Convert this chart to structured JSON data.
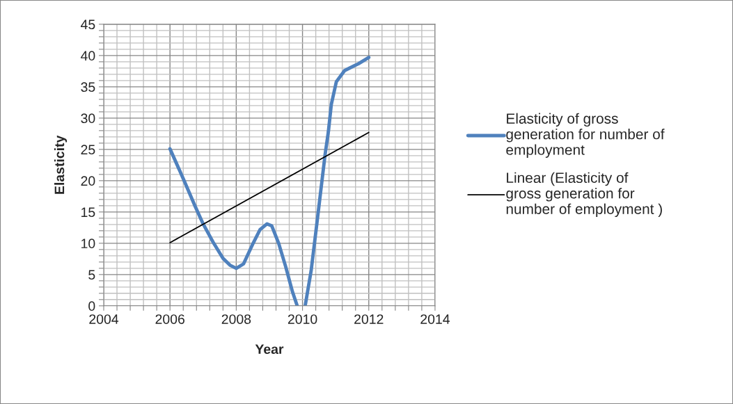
{
  "chart_data": {
    "type": "line",
    "xlabel": "Year",
    "ylabel": "Elasticity",
    "series": [
      {
        "name": "Elasticity of gross generation for number of employment",
        "color": "#4f81bd",
        "x": [
          2006,
          2006.41,
          2006.76,
          2007.0,
          2007.32,
          2007.6,
          2007.81,
          2008.0,
          2008.22,
          2008.51,
          2008.72,
          2008.93,
          2009.07,
          2009.28,
          2009.49,
          2009.7,
          2009.84,
          2009.96,
          2010.08,
          2010.26,
          2010.43,
          2010.68,
          2010.78,
          2010.87,
          2011.02,
          2011.27,
          2011.69,
          2012.0
        ],
        "values": [
          25.1,
          20.2,
          15.9,
          13.1,
          10.0,
          7.6,
          6.5,
          6.0,
          6.7,
          10.0,
          12.2,
          13.1,
          12.8,
          10.0,
          6.3,
          2.2,
          0,
          null,
          0,
          5.6,
          13.0,
          24.1,
          27.8,
          32.2,
          35.8,
          37.6,
          38.7,
          39.7
        ]
      },
      {
        "name": "Linear (Elasticity of gross generation for number of employment )",
        "color": "#000000",
        "x": [
          2006,
          2012
        ],
        "values": [
          10.1,
          27.7
        ]
      }
    ],
    "xlim": [
      2004,
      2014
    ],
    "xticks": [
      2004,
      {
        "value": 2004.4,
        "label": null
      },
      {
        "value": 2004.8,
        "label": null
      },
      {
        "value": 2005.2,
        "label": null
      },
      {
        "value": 2005.6,
        "label": null
      },
      2006,
      {
        "value": 2006.4,
        "label": null
      },
      {
        "value": 2006.8,
        "label": null
      },
      {
        "value": 2007.2,
        "label": null
      },
      {
        "value": 2007.6,
        "label": null
      },
      2008,
      {
        "value": 2008.4,
        "label": null
      },
      {
        "value": 2008.8,
        "label": null
      },
      {
        "value": 2009.2,
        "label": null
      },
      {
        "value": 2009.6,
        "label": null
      },
      2010,
      {
        "value": 2010.4,
        "label": null
      },
      {
        "value": 2010.8,
        "label": null
      },
      {
        "value": 2011.2,
        "label": null
      },
      {
        "value": 2011.6,
        "label": null
      },
      2012,
      {
        "value": 2012.4,
        "label": null
      },
      {
        "value": 2012.8,
        "label": null
      },
      {
        "value": 2013.2,
        "label": null
      },
      {
        "value": 2013.6,
        "label": null
      },
      2014
    ],
    "ylim": [
      0,
      45
    ],
    "yticks": [
      0,
      {
        "value": 1,
        "label": null
      },
      {
        "value": 2,
        "label": null
      },
      {
        "value": 3,
        "label": null
      },
      {
        "value": 4,
        "label": null
      },
      5,
      {
        "value": 6,
        "label": null
      },
      {
        "value": 7,
        "label": null
      },
      {
        "value": 8,
        "label": null
      },
      {
        "value": 9,
        "label": null
      },
      10,
      {
        "value": 11,
        "label": null
      },
      {
        "value": 12,
        "label": null
      },
      {
        "value": 13,
        "label": null
      },
      {
        "value": 14,
        "label": null
      },
      15,
      {
        "value": 16,
        "label": null
      },
      {
        "value": 17,
        "label": null
      },
      {
        "value": 18,
        "label": null
      },
      {
        "value": 19,
        "label": null
      },
      20,
      {
        "value": 21,
        "label": null
      },
      {
        "value": 22,
        "label": null
      },
      {
        "value": 23,
        "label": null
      },
      {
        "value": 24,
        "label": null
      },
      25,
      {
        "value": 26,
        "label": null
      },
      {
        "value": 27,
        "label": null
      },
      {
        "value": 28,
        "label": null
      },
      {
        "value": 29,
        "label": null
      },
      30,
      {
        "value": 31,
        "label": null
      },
      {
        "value": 32,
        "label": null
      },
      {
        "value": 33,
        "label": null
      },
      {
        "value": 34,
        "label": null
      },
      35,
      {
        "value": 36,
        "label": null
      },
      {
        "value": 37,
        "label": null
      },
      {
        "value": 38,
        "label": null
      },
      {
        "value": 39,
        "label": null
      },
      40,
      {
        "value": 41,
        "label": null
      },
      {
        "value": 42,
        "label": null
      },
      {
        "value": 43,
        "label": null
      },
      {
        "value": 44,
        "label": null
      },
      45
    ],
    "grid": true,
    "legend": "right",
    "marker": "none",
    "line_style": "solid"
  }
}
